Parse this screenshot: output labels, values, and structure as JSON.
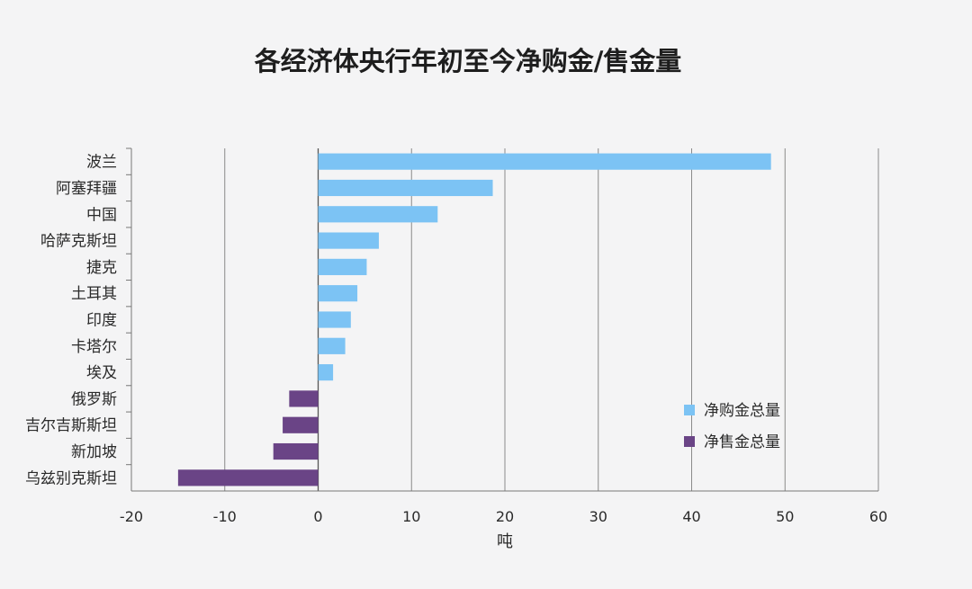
{
  "chart_data": {
    "type": "bar",
    "orientation": "horizontal",
    "title": "各经济体央行年初至今净购金/售金量",
    "xlabel": "吨",
    "ylabel": "",
    "xlim": [
      -20,
      60
    ],
    "xticks": [
      -20,
      -10,
      0,
      10,
      20,
      30,
      40,
      50,
      60
    ],
    "grid": "vertical",
    "legend_position": "right",
    "categories": [
      "波兰",
      "阿塞拜疆",
      "中国",
      "哈萨克斯坦",
      "捷克",
      "土耳其",
      "印度",
      "卡塔尔",
      "埃及",
      "俄罗斯",
      "吉尔吉斯斯坦",
      "新加坡",
      "乌兹别克斯坦"
    ],
    "values": [
      48.5,
      18.7,
      12.8,
      6.5,
      5.2,
      4.2,
      3.5,
      2.9,
      1.6,
      -3.1,
      -3.8,
      -4.8,
      -15.0
    ],
    "series": [
      {
        "name": "净购金总量",
        "color": "#7cc3f4"
      },
      {
        "name": "净售金总量",
        "color": "#6a4486"
      }
    ]
  }
}
